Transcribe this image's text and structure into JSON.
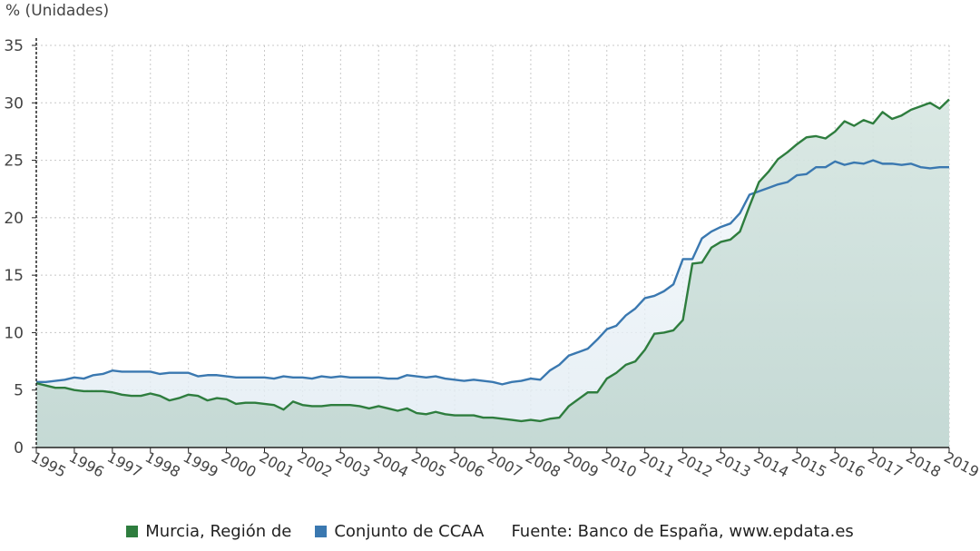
{
  "chart_data": {
    "type": "line",
    "unit_label": "% (Unidades)",
    "xlabel": "",
    "ylabel": "",
    "ylim": [
      0,
      35
    ],
    "yticks": [
      0,
      5,
      10,
      15,
      20,
      25,
      30,
      35
    ],
    "xlim": [
      1995,
      2019
    ],
    "xticks": [
      "1995",
      "1996",
      "1997",
      "1998",
      "1999",
      "2000",
      "2001",
      "2002",
      "2003",
      "2004",
      "2005",
      "2006",
      "2007",
      "2008",
      "2009",
      "2010",
      "2011",
      "2012",
      "2013",
      "2014",
      "2015",
      "2016",
      "2017",
      "2018",
      "2019"
    ],
    "grid": true,
    "legend_position": "bottom",
    "source": "Fuente: Banco de España, www.epdata.es",
    "series": [
      {
        "name": "Murcia, Región de",
        "color": "#2e7d3e",
        "x": [
          1995.0,
          1995.25,
          1995.5,
          1995.75,
          1996.0,
          1996.25,
          1996.5,
          1996.75,
          1997.0,
          1997.25,
          1997.5,
          1997.75,
          1998.0,
          1998.25,
          1998.5,
          1998.75,
          1999.0,
          1999.25,
          1999.5,
          1999.75,
          2000.0,
          2000.25,
          2000.5,
          2000.75,
          2001.0,
          2001.25,
          2001.5,
          2001.75,
          2002.0,
          2002.25,
          2002.5,
          2002.75,
          2003.0,
          2003.25,
          2003.5,
          2003.75,
          2004.0,
          2004.25,
          2004.5,
          2004.75,
          2005.0,
          2005.25,
          2005.5,
          2005.75,
          2006.0,
          2006.25,
          2006.5,
          2006.75,
          2007.0,
          2007.25,
          2007.5,
          2007.75,
          2008.0,
          2008.25,
          2008.5,
          2008.75,
          2009.0,
          2009.25,
          2009.5,
          2009.75,
          2010.0,
          2010.25,
          2010.5,
          2010.75,
          2011.0,
          2011.25,
          2011.5,
          2011.75,
          2012.0,
          2012.25,
          2012.5,
          2012.75,
          2013.0,
          2013.25,
          2013.5,
          2013.75,
          2014.0,
          2014.25,
          2014.5,
          2014.75,
          2015.0,
          2015.25,
          2015.5,
          2015.75,
          2016.0,
          2016.25,
          2016.5,
          2016.75,
          2017.0,
          2017.25,
          2017.5,
          2017.75,
          2018.0,
          2018.25,
          2018.5,
          2018.75,
          2019.0
        ],
        "values": [
          5.6,
          5.4,
          5.2,
          5.2,
          5.0,
          4.9,
          4.9,
          4.9,
          4.8,
          4.6,
          4.5,
          4.5,
          4.7,
          4.5,
          4.1,
          4.3,
          4.6,
          4.5,
          4.1,
          4.3,
          4.2,
          3.8,
          3.9,
          3.9,
          3.8,
          3.7,
          3.3,
          4.0,
          3.7,
          3.6,
          3.6,
          3.7,
          3.7,
          3.7,
          3.6,
          3.4,
          3.6,
          3.4,
          3.2,
          3.4,
          3.0,
          2.9,
          3.1,
          2.9,
          2.8,
          2.8,
          2.8,
          2.6,
          2.6,
          2.5,
          2.4,
          2.3,
          2.4,
          2.3,
          2.5,
          2.6,
          3.6,
          4.2,
          4.8,
          4.8,
          6.0,
          6.5,
          7.2,
          7.5,
          8.5,
          9.9,
          10.0,
          10.2,
          11.1,
          16.0,
          16.1,
          17.4,
          17.9,
          18.1,
          18.8,
          21.0,
          23.1,
          24.0,
          25.1,
          25.7,
          26.4,
          27.0,
          27.1,
          26.9,
          27.5,
          28.4,
          28.0,
          28.5,
          28.2,
          29.2,
          28.6,
          28.9,
          29.4,
          29.7,
          30.0,
          29.5,
          30.3
        ]
      },
      {
        "name": "Conjunto de CCAA",
        "color": "#3a78b0",
        "x": [
          1995.0,
          1995.25,
          1995.5,
          1995.75,
          1996.0,
          1996.25,
          1996.5,
          1996.75,
          1997.0,
          1997.25,
          1997.5,
          1997.75,
          1998.0,
          1998.25,
          1998.5,
          1998.75,
          1999.0,
          1999.25,
          1999.5,
          1999.75,
          2000.0,
          2000.25,
          2000.5,
          2000.75,
          2001.0,
          2001.25,
          2001.5,
          2001.75,
          2002.0,
          2002.25,
          2002.5,
          2002.75,
          2003.0,
          2003.25,
          2003.5,
          2003.75,
          2004.0,
          2004.25,
          2004.5,
          2004.75,
          2005.0,
          2005.25,
          2005.5,
          2005.75,
          2006.0,
          2006.25,
          2006.5,
          2006.75,
          2007.0,
          2007.25,
          2007.5,
          2007.75,
          2008.0,
          2008.25,
          2008.5,
          2008.75,
          2009.0,
          2009.25,
          2009.5,
          2009.75,
          2010.0,
          2010.25,
          2010.5,
          2010.75,
          2011.0,
          2011.25,
          2011.5,
          2011.75,
          2012.0,
          2012.25,
          2012.5,
          2012.75,
          2013.0,
          2013.25,
          2013.5,
          2013.75,
          2014.0,
          2014.25,
          2014.5,
          2014.75,
          2015.0,
          2015.25,
          2015.5,
          2015.75,
          2016.0,
          2016.25,
          2016.5,
          2016.75,
          2017.0,
          2017.25,
          2017.5,
          2017.75,
          2018.0,
          2018.25,
          2018.5,
          2018.75,
          2019.0
        ],
        "values": [
          5.7,
          5.7,
          5.8,
          5.9,
          6.1,
          6.0,
          6.3,
          6.4,
          6.7,
          6.6,
          6.6,
          6.6,
          6.6,
          6.4,
          6.5,
          6.5,
          6.5,
          6.2,
          6.3,
          6.3,
          6.2,
          6.1,
          6.1,
          6.1,
          6.1,
          6.0,
          6.2,
          6.1,
          6.1,
          6.0,
          6.2,
          6.1,
          6.2,
          6.1,
          6.1,
          6.1,
          6.1,
          6.0,
          6.0,
          6.3,
          6.2,
          6.1,
          6.2,
          6.0,
          5.9,
          5.8,
          5.9,
          5.8,
          5.7,
          5.5,
          5.7,
          5.8,
          6.0,
          5.9,
          6.7,
          7.2,
          8.0,
          8.3,
          8.6,
          9.4,
          10.3,
          10.6,
          11.5,
          12.1,
          13.0,
          13.2,
          13.6,
          14.2,
          16.4,
          16.4,
          18.2,
          18.8,
          19.2,
          19.5,
          20.4,
          22.0,
          22.3,
          22.6,
          22.9,
          23.1,
          23.7,
          23.8,
          24.4,
          24.4,
          24.9,
          24.6,
          24.8,
          24.7,
          25.0,
          24.7,
          24.7,
          24.6,
          24.7,
          24.4,
          24.3,
          24.4,
          24.4
        ]
      }
    ]
  }
}
